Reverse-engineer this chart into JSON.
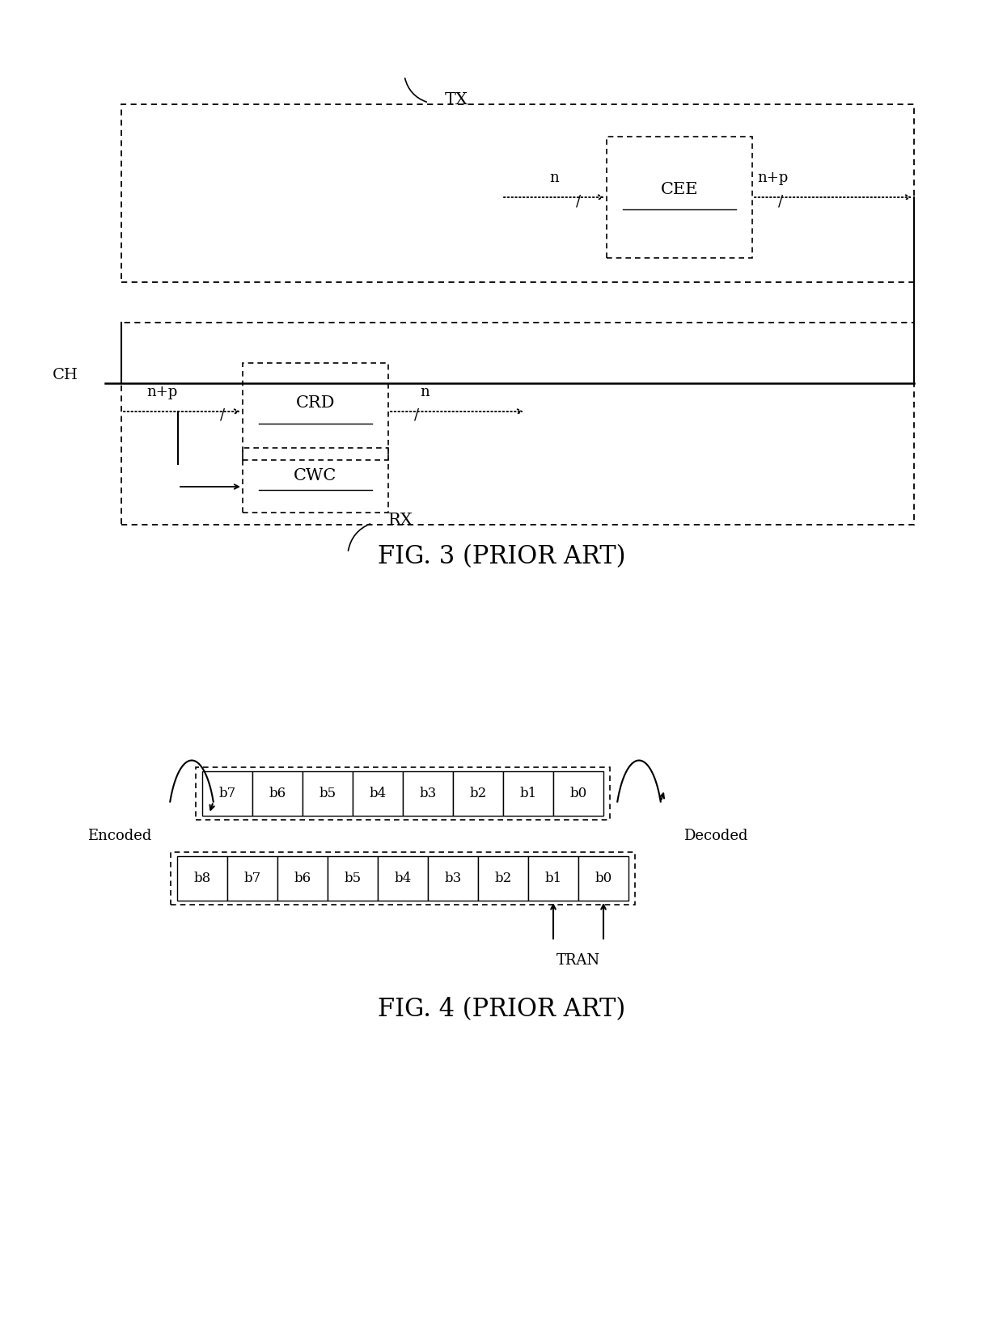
{
  "bg_color": "#ffffff",
  "fig3_title": "FIG. 3 (PRIOR ART)",
  "fig4_title": "FIG. 4 (PRIOR ART)",
  "tx_label": "TX",
  "rx_label": "RX",
  "ch_label": "CH",
  "cee_label": "CEE",
  "crd_label": "CRD",
  "cwc_label": "CWC",
  "n_label": "n",
  "np_label": "n+p",
  "tran_label": "TRAN",
  "encoded_label": "Encoded",
  "decoded_label": "Decoded",
  "row1_bits": [
    "b7",
    "b6",
    "b5",
    "b4",
    "b3",
    "b2",
    "b1",
    "b0"
  ],
  "row2_bits": [
    "b8",
    "b7",
    "b6",
    "b5",
    "b4",
    "b3",
    "b2",
    "b1",
    "b0"
  ]
}
